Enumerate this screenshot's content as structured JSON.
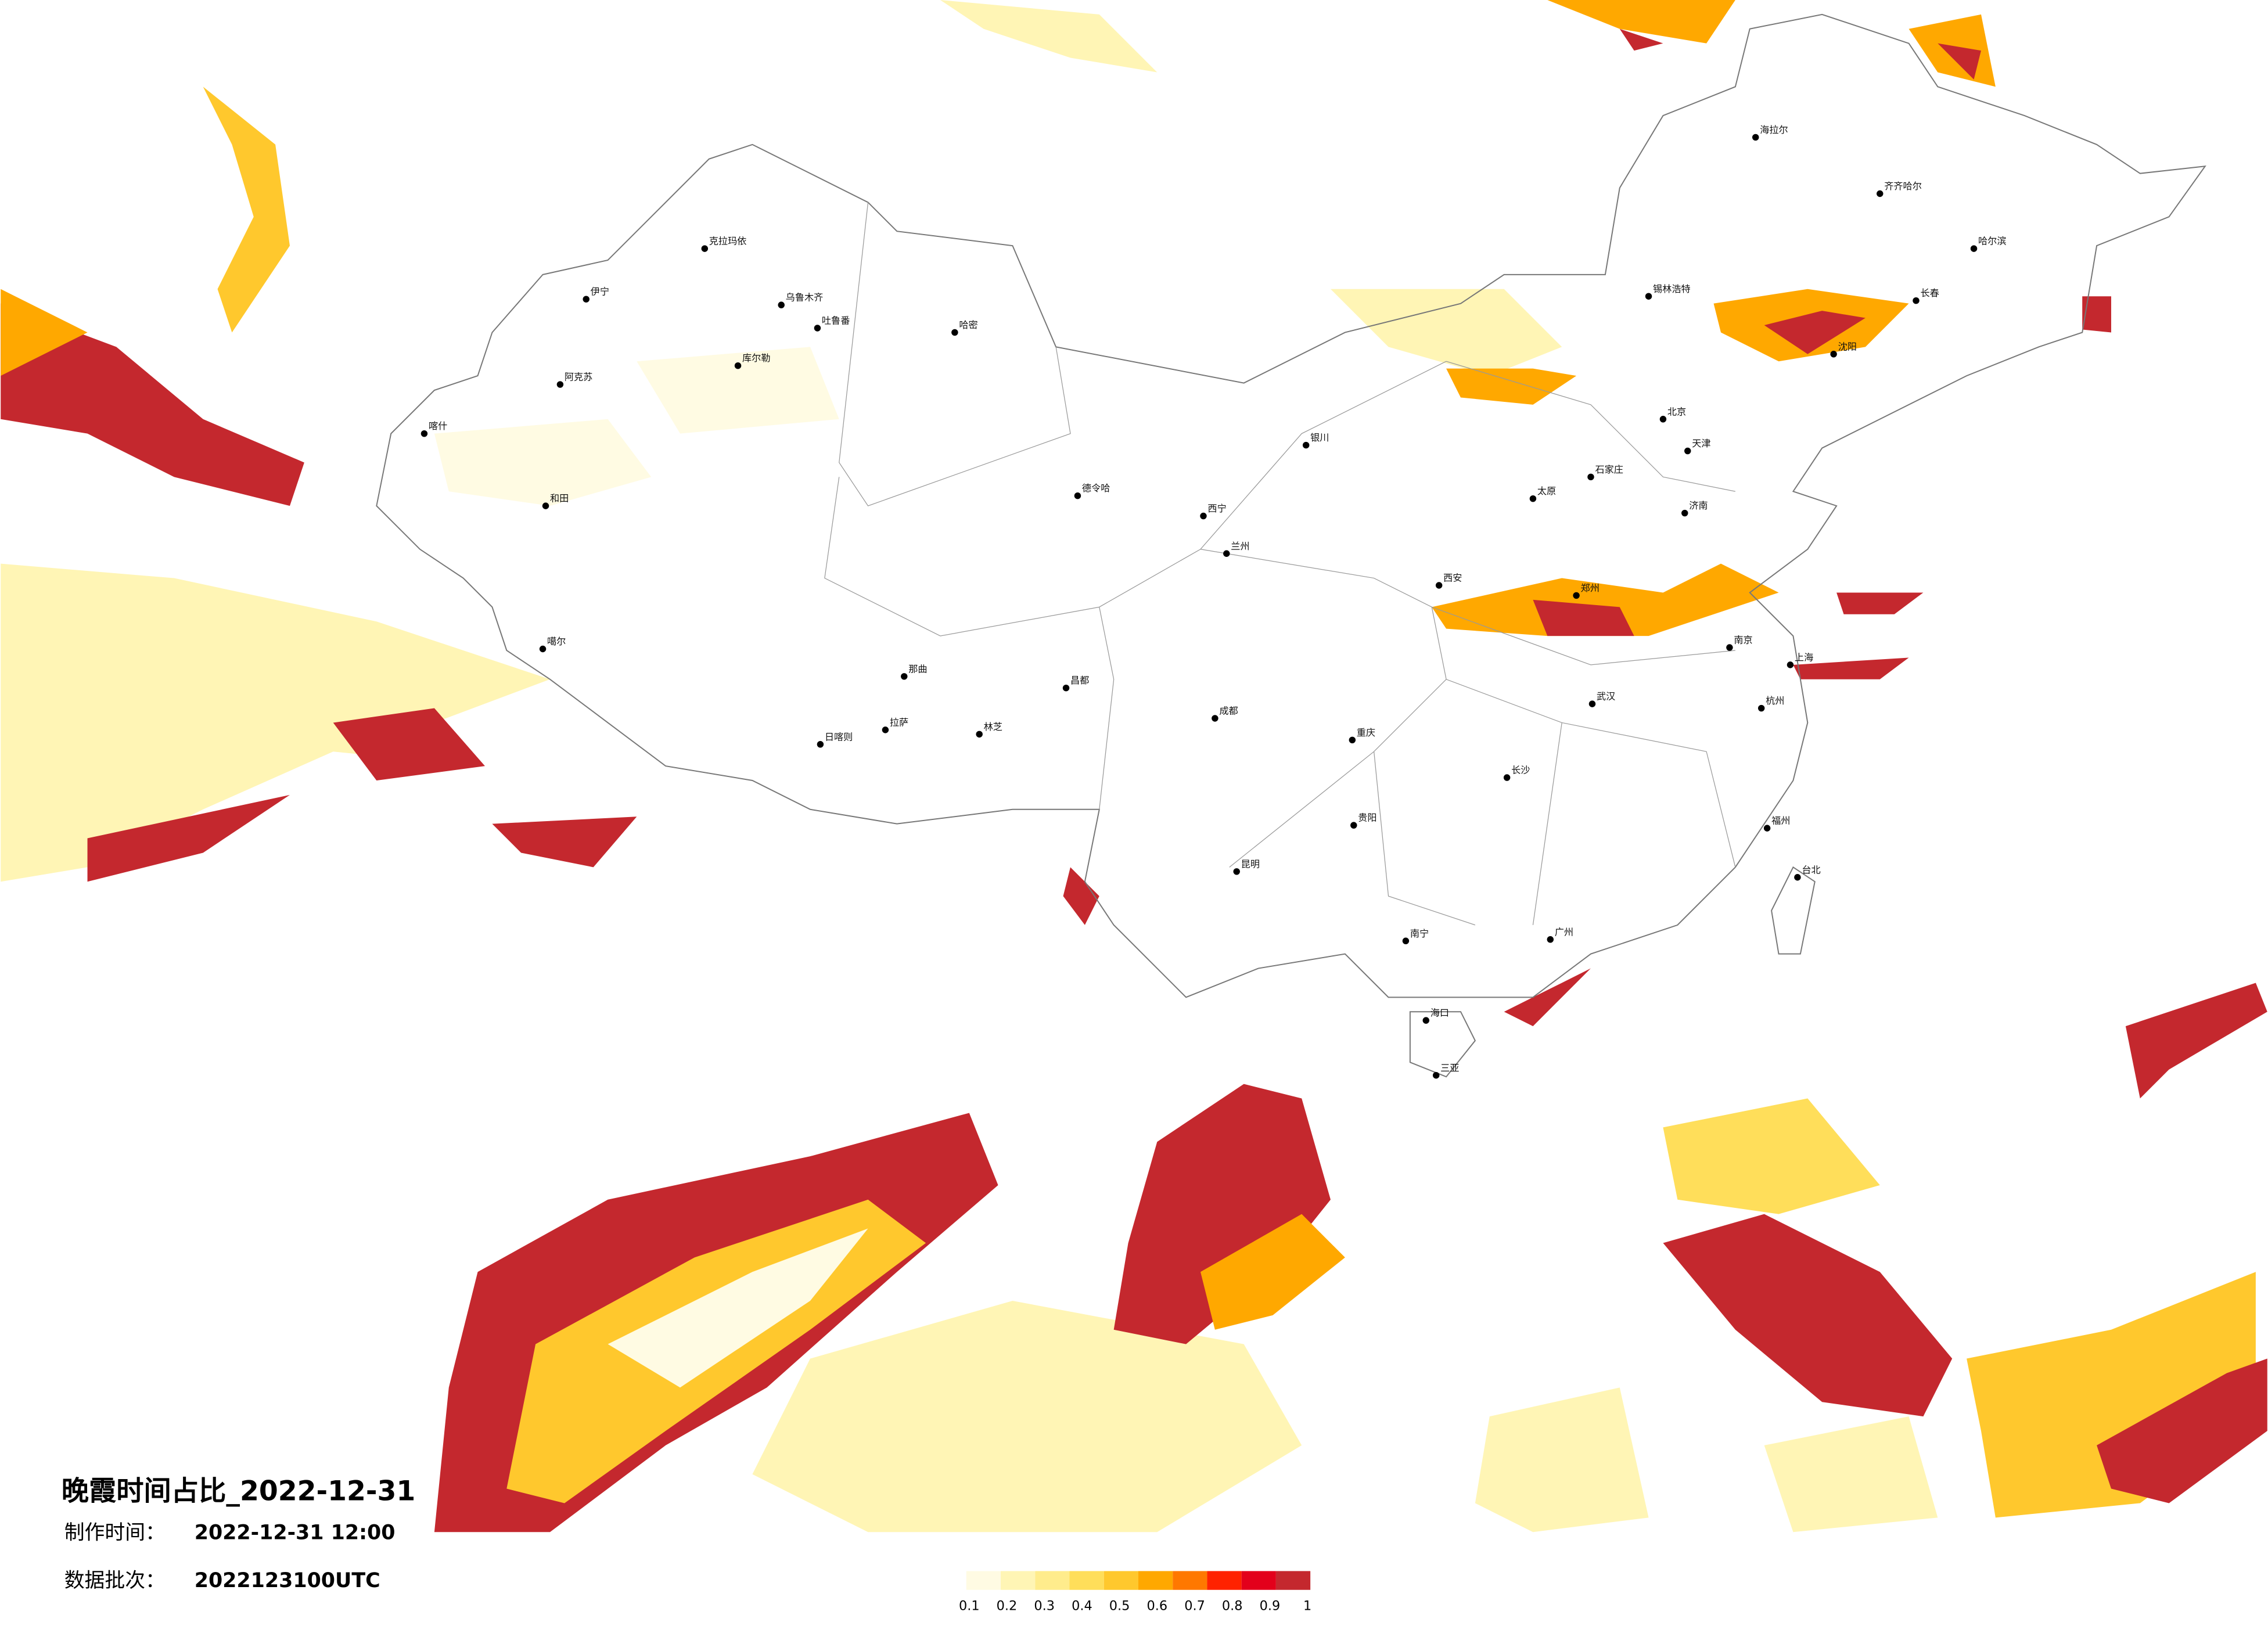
{
  "title": "晚霞时间占比_2022-12-31",
  "production_time": {
    "label": "制作时间：",
    "value": "2022-12-31 12:00"
  },
  "data_batch": {
    "label": "数据批次：",
    "value": "2022123100UTC"
  },
  "legend": {
    "ticks": [
      0.1,
      0.2,
      0.3,
      0.4,
      0.5,
      0.6,
      0.7,
      0.8,
      0.9,
      1
    ],
    "colors": [
      "#fffbe3",
      "#fff5b5",
      "#ffec8c",
      "#ffde5a",
      "#ffc82d",
      "#ffa800",
      "#ff7800",
      "#ff2200",
      "#e3001b",
      "#c4282e"
    ]
  },
  "cities": [
    "克拉玛依",
    "伊宁",
    "乌鲁木齐",
    "吐鲁番",
    "哈密",
    "阿克苏",
    "库尔勒",
    "和田",
    "喀什",
    "噶尔",
    "日喀则",
    "拉萨",
    "林芝",
    "那曲",
    "昌都",
    "德令哈",
    "西宁",
    "兰州",
    "银川",
    "成都",
    "重庆",
    "昆明",
    "贵阳",
    "南宁",
    "海口",
    "三亚",
    "广州",
    "长沙",
    "武汉",
    "南京",
    "上海",
    "杭州",
    "福州",
    "台北",
    "北京",
    "天津",
    "石家庄",
    "济南",
    "郑州",
    "西安",
    "太原",
    "沈阳",
    "长春",
    "哈尔滨",
    "齐齐哈尔",
    "海拉尔",
    "锡林浩特"
  ]
}
